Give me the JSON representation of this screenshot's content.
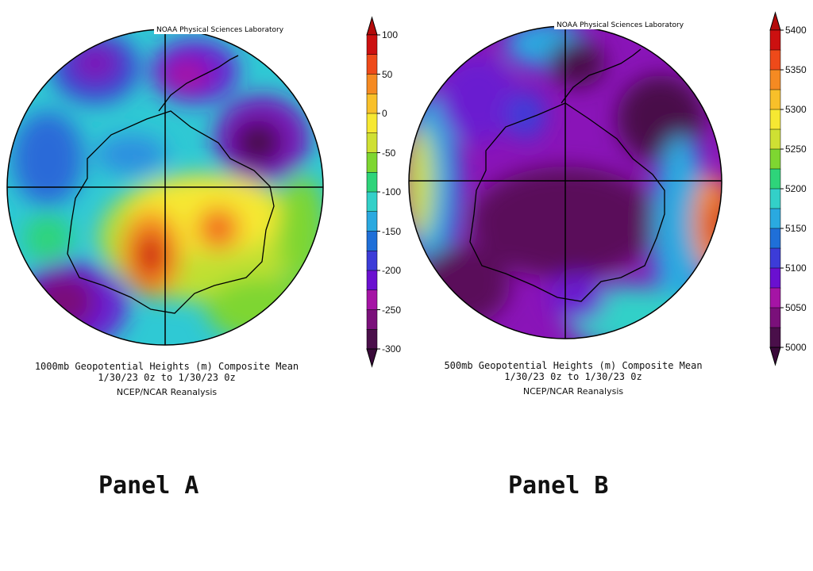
{
  "credit": "NOAA Physical Sciences Laboratory",
  "panels": [
    {
      "id": "a",
      "label": "Panel A",
      "caption_line1": "1000mb Geopotential Heights (m)   Composite Mean",
      "caption_line2": "1/30/23 0z  to 1/30/23 0z",
      "caption_line3": "NCEP/NCAR Reanalysis",
      "colorbar_ticks": [
        "100",
        "50",
        "0",
        "-50",
        "-100",
        "-150",
        "-200",
        "-250",
        "-300"
      ],
      "colorbar_range": [
        -300,
        100
      ],
      "units": "m"
    },
    {
      "id": "b",
      "label": "Panel B",
      "caption_line1": "500mb Geopotential Heights (m)   Composite Mean",
      "caption_line2": "1/30/23 0z  to 1/30/23 0z",
      "caption_line3": "NCEP/NCAR Reanalysis",
      "colorbar_ticks": [
        "5400",
        "5350",
        "5300",
        "5250",
        "5200",
        "5150",
        "5100",
        "5050",
        "5000"
      ],
      "colorbar_range": [
        5000,
        5400
      ],
      "units": "m"
    }
  ],
  "colorscale": [
    "#4a0f4a",
    "#7a107a",
    "#a514a5",
    "#6a10d0",
    "#3c3cd8",
    "#1f6fd8",
    "#2aa9e0",
    "#33d0c8",
    "#2ed47a",
    "#7ed631",
    "#cfe033",
    "#f6e832",
    "#f8c02a",
    "#f58a22",
    "#ee4a1a",
    "#cc1010"
  ]
}
